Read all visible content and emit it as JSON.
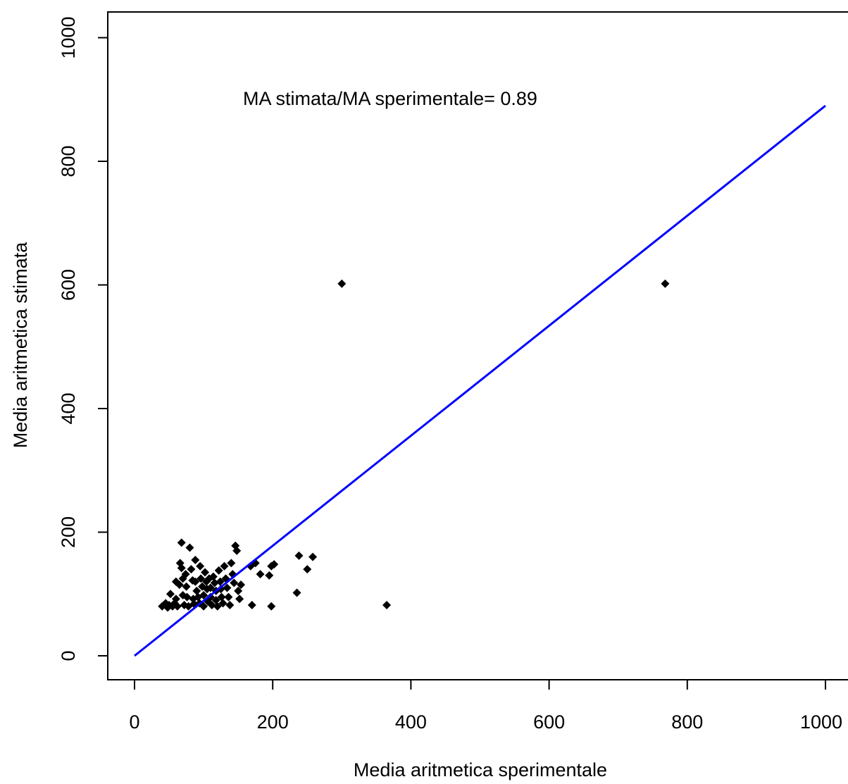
{
  "chart_data": {
    "type": "scatter",
    "title": "",
    "xlabel": "Media aritmetica sperimentale",
    "ylabel": "Media aritmetica stimata",
    "xlim": [
      -40,
      1040
    ],
    "ylim": [
      -40,
      1040
    ],
    "xticks": [
      0,
      200,
      400,
      600,
      800,
      1000
    ],
    "yticks": [
      0,
      200,
      400,
      600,
      800,
      1000
    ],
    "xtick_labels": [
      "0",
      "200",
      "400",
      "600",
      "800",
      "1000"
    ],
    "ytick_labels": [
      "0",
      "200",
      "400",
      "600",
      "800",
      "1000"
    ],
    "grid": false,
    "annotation": "MA stimata/MA sperimentale= 0.89",
    "point_color": "#000000",
    "line_color": "#0000ff",
    "fit_line": {
      "slope": 0.89,
      "x": [
        0,
        1000
      ]
    },
    "points": [
      [
        40,
        80
      ],
      [
        45,
        85
      ],
      [
        48,
        78
      ],
      [
        50,
        82
      ],
      [
        52,
        100
      ],
      [
        55,
        80
      ],
      [
        58,
        85
      ],
      [
        60,
        120
      ],
      [
        60,
        92
      ],
      [
        62,
        80
      ],
      [
        65,
        115
      ],
      [
        66,
        150
      ],
      [
        68,
        183
      ],
      [
        68,
        142
      ],
      [
        70,
        125
      ],
      [
        70,
        98
      ],
      [
        72,
        82
      ],
      [
        74,
        132
      ],
      [
        75,
        112
      ],
      [
        76,
        95
      ],
      [
        78,
        80
      ],
      [
        80,
        175
      ],
      [
        82,
        140
      ],
      [
        84,
        122
      ],
      [
        85,
        92
      ],
      [
        86,
        84
      ],
      [
        88,
        155
      ],
      [
        88,
        120
      ],
      [
        90,
        105
      ],
      [
        92,
        95
      ],
      [
        94,
        85
      ],
      [
        95,
        145
      ],
      [
        96,
        125
      ],
      [
        98,
        112
      ],
      [
        100,
        98
      ],
      [
        100,
        80
      ],
      [
        102,
        135
      ],
      [
        104,
        120
      ],
      [
        105,
        108
      ],
      [
        106,
        88
      ],
      [
        108,
        125
      ],
      [
        110,
        110
      ],
      [
        110,
        95
      ],
      [
        112,
        82
      ],
      [
        114,
        128
      ],
      [
        116,
        118
      ],
      [
        118,
        105
      ],
      [
        118,
        90
      ],
      [
        120,
        80
      ],
      [
        122,
        138
      ],
      [
        124,
        120
      ],
      [
        125,
        108
      ],
      [
        126,
        95
      ],
      [
        128,
        85
      ],
      [
        130,
        145
      ],
      [
        132,
        125
      ],
      [
        134,
        110
      ],
      [
        136,
        95
      ],
      [
        138,
        82
      ],
      [
        140,
        150
      ],
      [
        142,
        132
      ],
      [
        144,
        118
      ],
      [
        146,
        178
      ],
      [
        148,
        170
      ],
      [
        150,
        105
      ],
      [
        152,
        92
      ],
      [
        154,
        115
      ],
      [
        168,
        145
      ],
      [
        170,
        82
      ],
      [
        175,
        150
      ],
      [
        182,
        132
      ],
      [
        195,
        130
      ],
      [
        198,
        80
      ],
      [
        198,
        145
      ],
      [
        202,
        148
      ],
      [
        235,
        102
      ],
      [
        238,
        162
      ],
      [
        250,
        140
      ],
      [
        258,
        160
      ],
      [
        300,
        602
      ],
      [
        365,
        82
      ],
      [
        768,
        602
      ]
    ]
  }
}
